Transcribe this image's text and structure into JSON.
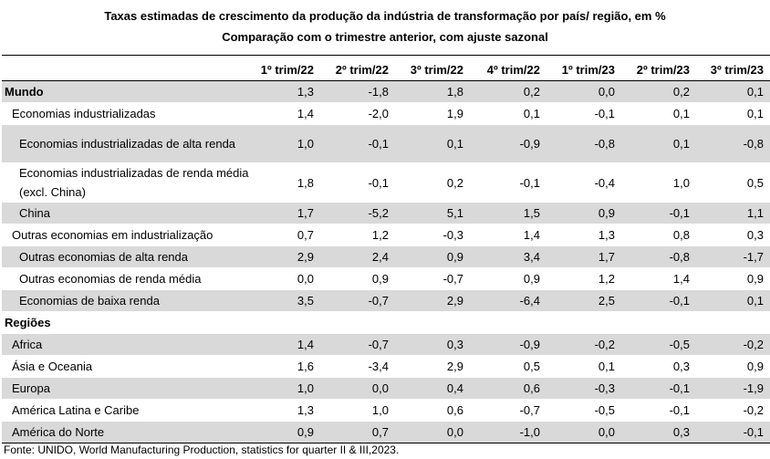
{
  "title": "Taxas estimadas de crescimento da produção da indústria de transformação por país/ região, em %",
  "subtitle": "Comparação com o trimestre anterior, com ajuste sazonal",
  "columns": [
    "1º trim/22",
    "2º trim/22",
    "3º trim/22",
    "4º trim/22",
    "1º trim/23",
    "2º trim/23",
    "3º trim/23"
  ],
  "rows": [
    {
      "label": "Mundo",
      "values": [
        "1,3",
        "-1,8",
        "1,8",
        "0,2",
        "0,0",
        "0,2",
        "0,1"
      ]
    },
    {
      "label": "Economias industrializadas",
      "values": [
        "1,4",
        "-2,0",
        "1,9",
        "0,1",
        "-0,1",
        "0,1",
        "0,1"
      ]
    },
    {
      "label": "Economias industrializadas de alta renda",
      "values": [
        "1,0",
        "-0,1",
        "0,1",
        "-0,9",
        "-0,8",
        "0,1",
        "-0,8"
      ]
    },
    {
      "label": "Economias industrializadas de renda média (excl. China)",
      "values": [
        "1,8",
        "-0,1",
        "0,2",
        "-0,1",
        "-0,4",
        "1,0",
        "0,5"
      ]
    },
    {
      "label": "China",
      "values": [
        "1,7",
        "-5,2",
        "5,1",
        "1,5",
        "0,9",
        "-0,1",
        "1,1"
      ]
    },
    {
      "label": "Outras economias em industrialização",
      "values": [
        "0,7",
        "1,2",
        "-0,3",
        "1,4",
        "1,3",
        "0,8",
        "0,3"
      ]
    },
    {
      "label": "Outras economias de alta renda",
      "values": [
        "2,9",
        "2,4",
        "0,9",
        "3,4",
        "1,7",
        "-0,8",
        "-1,7"
      ]
    },
    {
      "label": "Outras economias de renda média",
      "values": [
        "0,0",
        "0,9",
        "-0,7",
        "0,9",
        "1,2",
        "1,4",
        "0,9"
      ]
    },
    {
      "label": "Economias de baixa renda",
      "values": [
        "3,5",
        "-0,7",
        "2,9",
        "-6,4",
        "2,5",
        "-0,1",
        "0,1"
      ]
    },
    {
      "label": "Regiões",
      "values": [
        "",
        "",
        "",
        "",
        "",
        "",
        ""
      ]
    },
    {
      "label": "Africa",
      "values": [
        "1,4",
        "-0,7",
        "0,3",
        "-0,9",
        "-0,2",
        "-0,5",
        "-0,2"
      ]
    },
    {
      "label": "Ásia e Oceania",
      "values": [
        "1,6",
        "-3,4",
        "2,9",
        "0,5",
        "0,1",
        "0,3",
        "0,9"
      ]
    },
    {
      "label": "Europa",
      "values": [
        "1,0",
        "0,0",
        "0,4",
        "0,6",
        "-0,3",
        "-0,1",
        "-1,9"
      ]
    },
    {
      "label": "América Latina e Caribe",
      "values": [
        "1,3",
        "1,0",
        "0,6",
        "-0,7",
        "-0,5",
        "-0,1",
        "-0,2"
      ]
    },
    {
      "label": "América do Norte",
      "values": [
        "0,9",
        "0,7",
        "0,0",
        "-1,0",
        "0,0",
        "0,3",
        "-0,1"
      ]
    }
  ],
  "source": "Fonte: UNIDO, World Manufacturing Production, statistics for quarter II & III,2023.",
  "colors": {
    "band": "#d9d9d9",
    "rule": "#000000"
  },
  "chart_data": {
    "type": "table",
    "title": "Taxas estimadas de crescimento da produção da indústria de transformação por país/ região, em %",
    "subtitle": "Comparação com o trimestre anterior, com ajuste sazonal",
    "categories": [
      "1º trim/22",
      "2º trim/22",
      "3º trim/22",
      "4º trim/22",
      "1º trim/23",
      "2º trim/23",
      "3º trim/23"
    ],
    "series": [
      {
        "name": "Mundo",
        "values": [
          1.3,
          -1.8,
          1.8,
          0.2,
          0.0,
          0.2,
          0.1
        ]
      },
      {
        "name": "Economias industrializadas",
        "values": [
          1.4,
          -2.0,
          1.9,
          0.1,
          -0.1,
          0.1,
          0.1
        ]
      },
      {
        "name": "Economias industrializadas de alta renda",
        "values": [
          1.0,
          -0.1,
          0.1,
          -0.9,
          -0.8,
          0.1,
          -0.8
        ]
      },
      {
        "name": "Economias industrializadas de renda média (excl. China)",
        "values": [
          1.8,
          -0.1,
          0.2,
          -0.1,
          -0.4,
          1.0,
          0.5
        ]
      },
      {
        "name": "China",
        "values": [
          1.7,
          -5.2,
          5.1,
          1.5,
          0.9,
          -0.1,
          1.1
        ]
      },
      {
        "name": "Outras economias em industrialização",
        "values": [
          0.7,
          1.2,
          -0.3,
          1.4,
          1.3,
          0.8,
          0.3
        ]
      },
      {
        "name": "Outras economias de alta renda",
        "values": [
          2.9,
          2.4,
          0.9,
          3.4,
          1.7,
          -0.8,
          -1.7
        ]
      },
      {
        "name": "Outras economias de renda média",
        "values": [
          0.0,
          0.9,
          -0.7,
          0.9,
          1.2,
          1.4,
          0.9
        ]
      },
      {
        "name": "Economias de baixa renda",
        "values": [
          3.5,
          -0.7,
          2.9,
          -6.4,
          2.5,
          -0.1,
          0.1
        ]
      },
      {
        "name": "Africa",
        "values": [
          1.4,
          -0.7,
          0.3,
          -0.9,
          -0.2,
          -0.5,
          -0.2
        ]
      },
      {
        "name": "Ásia e Oceania",
        "values": [
          1.6,
          -3.4,
          2.9,
          0.5,
          0.1,
          0.3,
          0.9
        ]
      },
      {
        "name": "Europa",
        "values": [
          1.0,
          0.0,
          0.4,
          0.6,
          -0.3,
          -0.1,
          -1.9
        ]
      },
      {
        "name": "América Latina e Caribe",
        "values": [
          1.3,
          1.0,
          0.6,
          -0.7,
          -0.5,
          -0.1,
          -0.2
        ]
      },
      {
        "name": "América do Norte",
        "values": [
          0.9,
          0.7,
          0.0,
          -1.0,
          0.0,
          0.3,
          -0.1
        ]
      }
    ]
  }
}
